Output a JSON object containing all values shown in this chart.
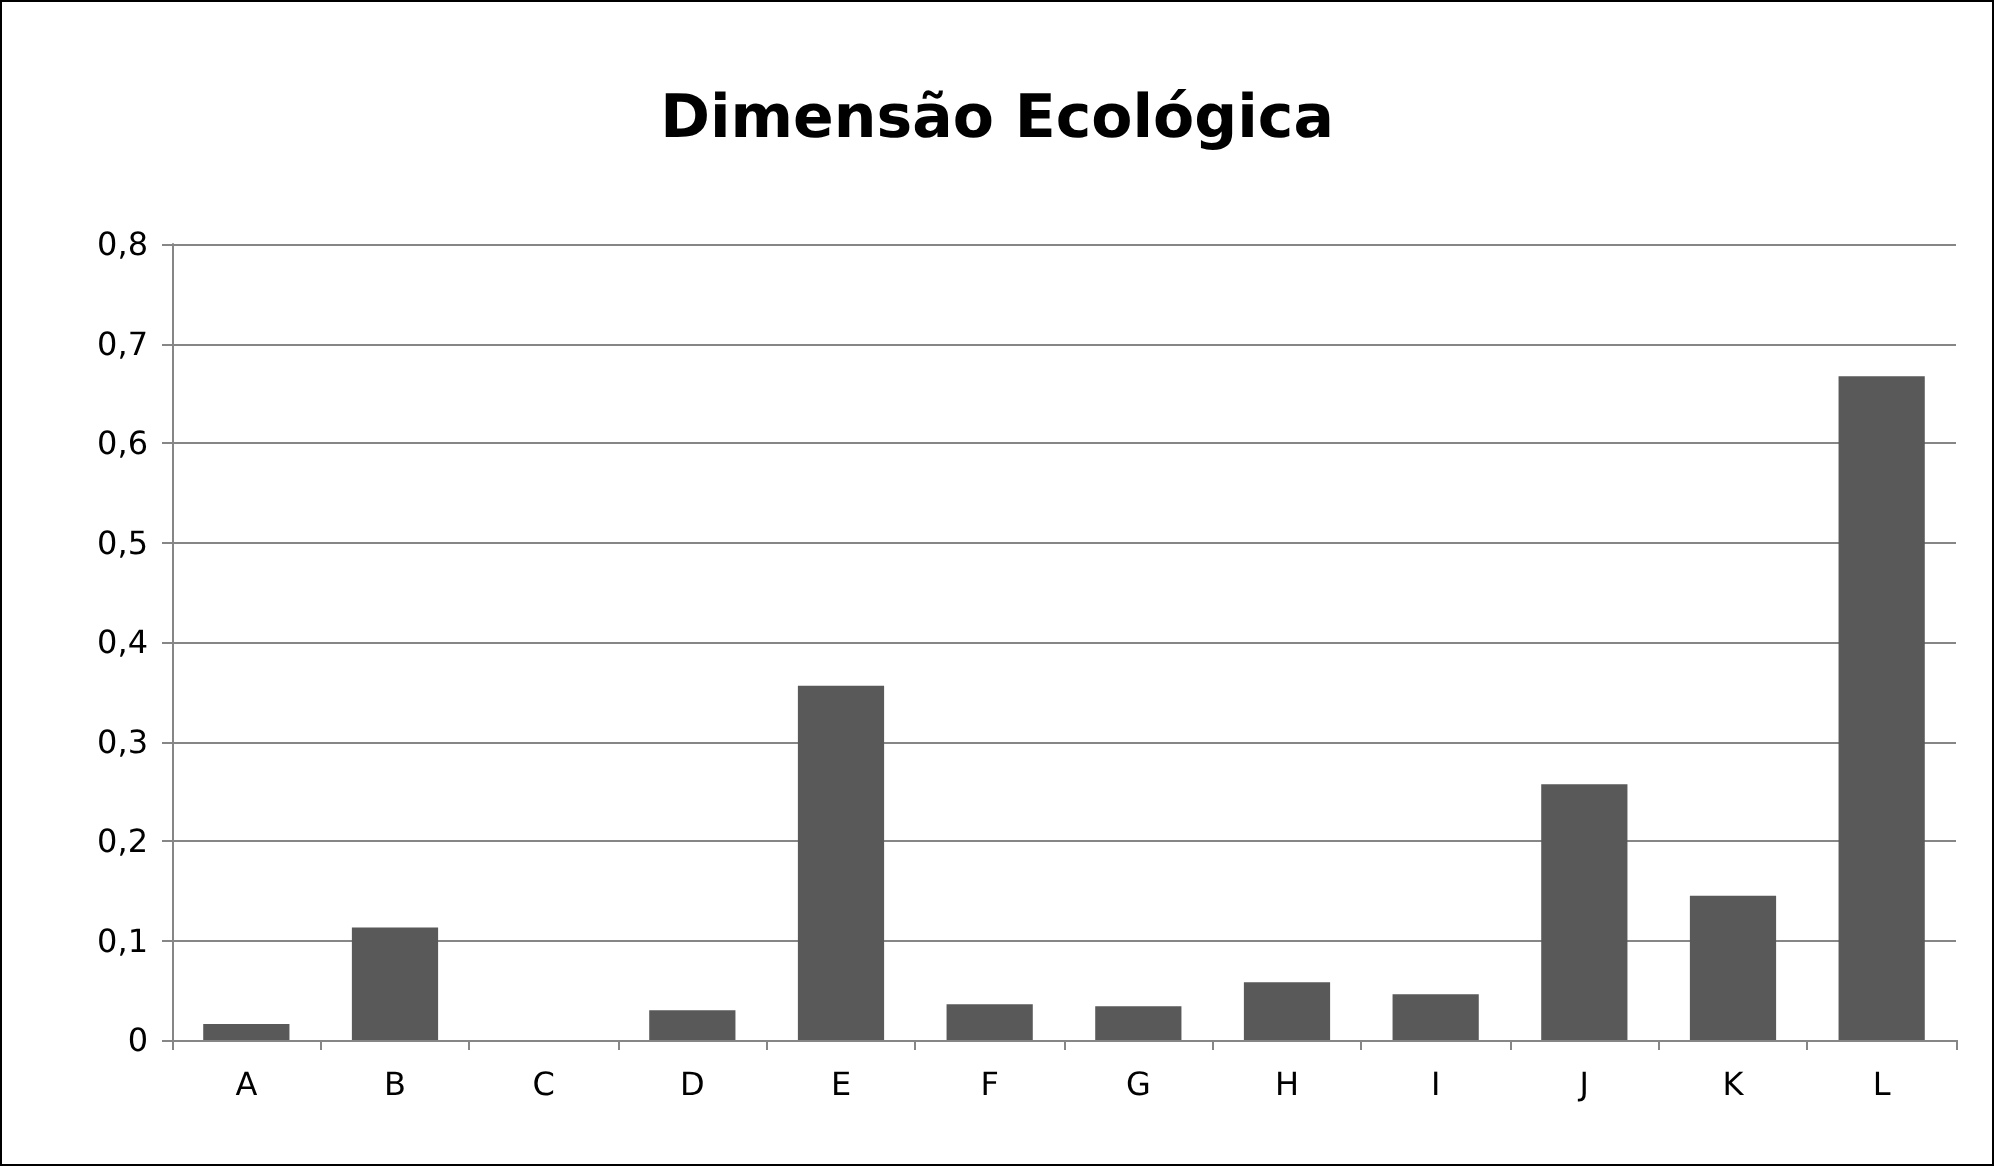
{
  "chart_data": {
    "type": "bar",
    "title": "Dimensão Ecológica",
    "categories": [
      "A",
      "B",
      "C",
      "D",
      "E",
      "F",
      "G",
      "H",
      "I",
      "J",
      "K",
      "L"
    ],
    "values": [
      0.016,
      0.113,
      0,
      0.03,
      0.356,
      0.036,
      0.034,
      0.058,
      0.046,
      0.257,
      0.145,
      0.667
    ],
    "color": "#595959",
    "ylim": [
      0,
      0.8
    ],
    "yticks": [
      0,
      {
        "value": 0.1,
        "label": "0,1"
      },
      {
        "value": 0.2,
        "label": "0,2"
      },
      {
        "value": 0.3,
        "label": "0,3"
      },
      {
        "value": 0.4,
        "label": "0,4"
      },
      {
        "value": 0.5,
        "label": "0,5"
      },
      {
        "value": 0.6,
        "label": "0,6"
      },
      {
        "value": 0.7,
        "label": "0,7"
      },
      {
        "value": 0.8,
        "label": "0,8"
      }
    ],
    "grid": "y"
  }
}
